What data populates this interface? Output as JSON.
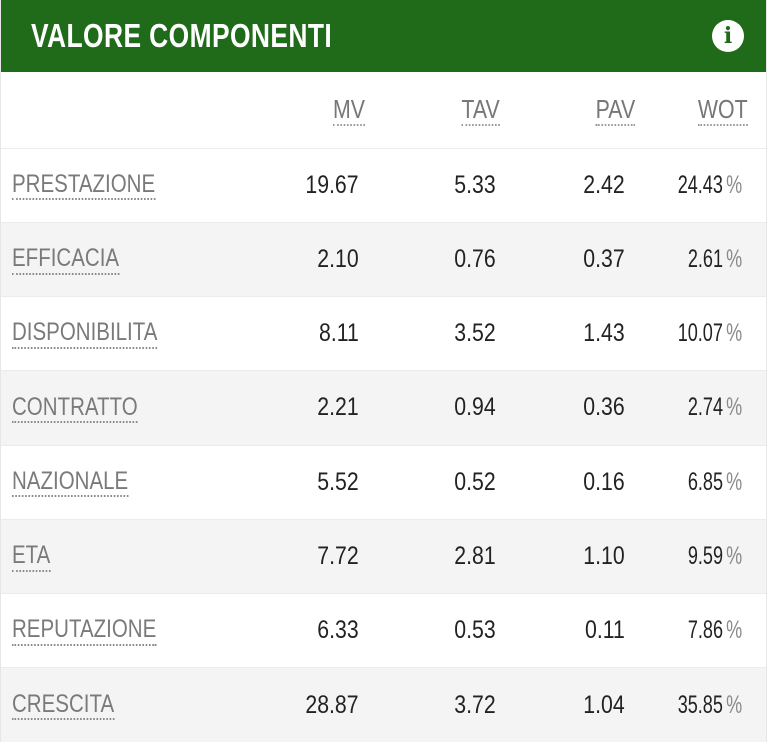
{
  "header": {
    "title": "VALORE COMPONENTI",
    "info_icon": "info-icon"
  },
  "colors": {
    "header_bg": "#1f6b19",
    "header_text": "#ffffff",
    "row_alt": "#f4f4f4"
  },
  "columns": [
    "MV",
    "TAV",
    "PAV",
    "WOT"
  ],
  "rows": [
    {
      "label": "PRESTAZIONE",
      "mv": "19.67",
      "tav": "5.33",
      "pav": "2.42",
      "wot": "24.43",
      "pct": "%"
    },
    {
      "label": "EFFICACIA",
      "mv": "2.10",
      "tav": "0.76",
      "pav": "0.37",
      "wot": "2.61",
      "pct": "%"
    },
    {
      "label": "DISPONIBILITA",
      "mv": "8.11",
      "tav": "3.52",
      "pav": "1.43",
      "wot": "10.07",
      "pct": "%"
    },
    {
      "label": "CONTRATTO",
      "mv": "2.21",
      "tav": "0.94",
      "pav": "0.36",
      "wot": "2.74",
      "pct": "%"
    },
    {
      "label": "NAZIONALE",
      "mv": "5.52",
      "tav": "0.52",
      "pav": "0.16",
      "wot": "6.85",
      "pct": "%"
    },
    {
      "label": "ETA",
      "mv": "7.72",
      "tav": "2.81",
      "pav": "1.10",
      "wot": "9.59",
      "pct": "%"
    },
    {
      "label": "REPUTAZIONE",
      "mv": "6.33",
      "tav": "0.53",
      "pav": "0.11",
      "wot": "7.86",
      "pct": "%"
    },
    {
      "label": "CRESCITA",
      "mv": "28.87",
      "tav": "3.72",
      "pav": "1.04",
      "wot": "35.85",
      "pct": "%"
    }
  ]
}
